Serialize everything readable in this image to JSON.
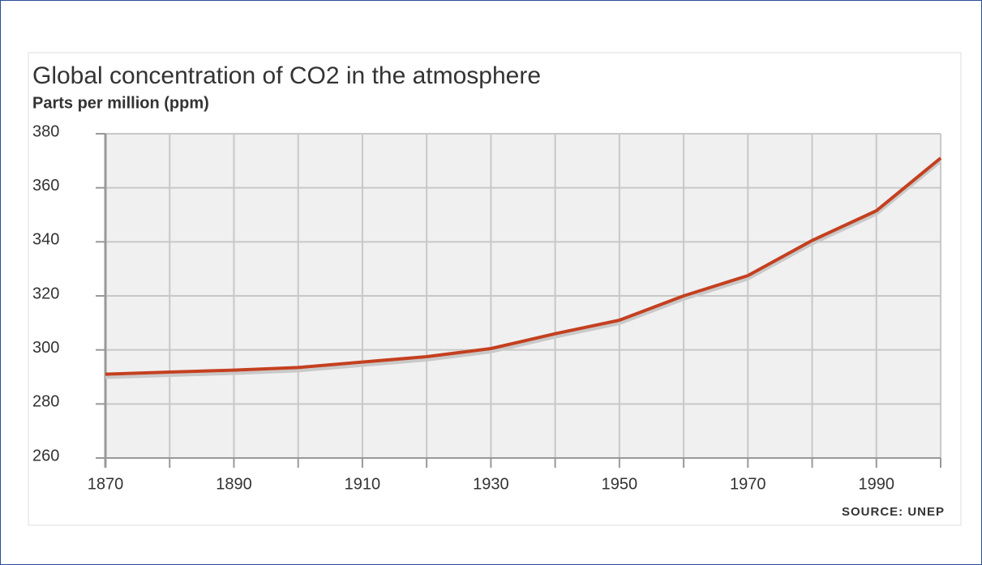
{
  "chart_data": {
    "type": "line",
    "title": "Global concentration of CO2 in the atmosphere",
    "subtitle": "Parts per million (ppm)",
    "source": "SOURCE: UNEP",
    "x": [
      1870,
      1880,
      1890,
      1900,
      1910,
      1920,
      1930,
      1940,
      1950,
      1960,
      1970,
      1980,
      1990,
      2000
    ],
    "series": [
      {
        "color": "#c4401f",
        "values": [
          291,
          291.8,
          292.5,
          293.5,
          295.5,
          297.5,
          300.5,
          306,
          311,
          320,
          327.5,
          340.5,
          351.5,
          371
        ]
      }
    ],
    "xlim": [
      1870,
      2000
    ],
    "xticks": [
      1870,
      1890,
      1910,
      1930,
      1950,
      1970,
      1990
    ],
    "xminor_ticks": [
      1880,
      1900,
      1920,
      1940,
      1960,
      1980,
      2000
    ],
    "ylim": [
      260,
      380
    ],
    "yticks": [
      260,
      280,
      300,
      320,
      340,
      360,
      380
    ],
    "grid": true
  }
}
